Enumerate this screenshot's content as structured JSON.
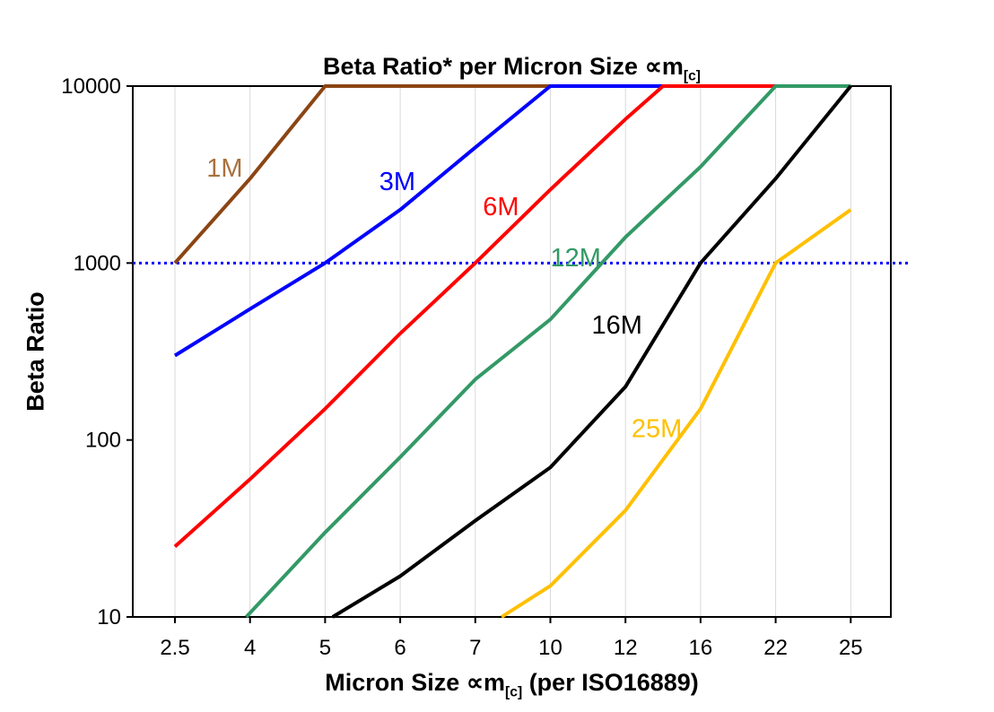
{
  "title": {
    "main": "Beta Ratio* per Micron Size ∝m",
    "sub": "[c]"
  },
  "y_axis_label": "Beta Ratio",
  "x_axis_label": {
    "pre": "Micron Size ∝m",
    "sub": "[c]",
    "post": " (per ISO16889)"
  },
  "chart_data": {
    "type": "line",
    "title": "Beta Ratio* per Micron Size ∝m[c]",
    "xlabel": "Micron Size ∝m[c] (per ISO16889)",
    "ylabel": "Beta Ratio",
    "x_scale": "category",
    "y_scale": "log10",
    "ylim": [
      10,
      10000
    ],
    "y_ticks": [
      "10",
      "100",
      "1000",
      "10000"
    ],
    "categories": [
      "2.5",
      "4",
      "5",
      "6",
      "7",
      "10",
      "12",
      "16",
      "22",
      "25"
    ],
    "grid": {
      "vertical": true,
      "horizontal": false,
      "color": "#d9d9d9"
    },
    "reference_line": {
      "y": 1000,
      "color": "#0000ff",
      "style": "dotted"
    },
    "points_format": "[category_index, beta_ratio]",
    "series": [
      {
        "name": "1M",
        "color": "#8B4513",
        "label_color": "#A9713F",
        "label_at": [
          0.42,
          3080
        ],
        "points": [
          [
            0,
            1000
          ],
          [
            1,
            3000
          ],
          [
            2,
            10000
          ],
          [
            9,
            10000
          ]
        ]
      },
      {
        "name": "3M",
        "color": "#0000FF",
        "label_at": [
          2.72,
          2580
        ],
        "points": [
          [
            0,
            300
          ],
          [
            1,
            550
          ],
          [
            2,
            1000
          ],
          [
            3,
            2000
          ],
          [
            4,
            4500
          ],
          [
            5,
            10000
          ],
          [
            9,
            10000
          ]
        ]
      },
      {
        "name": "6M",
        "color": "#FF0000",
        "label_at": [
          4.1,
          1860
        ],
        "points": [
          [
            0,
            25
          ],
          [
            1,
            60
          ],
          [
            2,
            150
          ],
          [
            3,
            400
          ],
          [
            4,
            1000
          ],
          [
            5,
            2600
          ],
          [
            6,
            6500
          ],
          [
            6.5,
            10000
          ],
          [
            9,
            10000
          ]
        ]
      },
      {
        "name": "12M",
        "color": "#339966",
        "label_at": [
          5.0,
          960
        ],
        "points": [
          [
            0.95,
            10
          ],
          [
            2,
            30
          ],
          [
            3,
            80
          ],
          [
            4,
            220
          ],
          [
            5,
            480
          ],
          [
            6,
            1400
          ],
          [
            7,
            3500
          ],
          [
            8,
            10000
          ],
          [
            9,
            10000
          ]
        ]
      },
      {
        "name": "16M",
        "color": "#000000",
        "label_at": [
          5.55,
          400
        ],
        "points": [
          [
            2.1,
            10
          ],
          [
            3,
            17
          ],
          [
            4,
            35
          ],
          [
            5,
            70
          ],
          [
            6,
            200
          ],
          [
            7,
            1000
          ],
          [
            8,
            3000
          ],
          [
            9,
            10000
          ]
        ]
      },
      {
        "name": "25M",
        "color": "#FFC000",
        "label_at": [
          6.08,
          104
        ],
        "points": [
          [
            4.35,
            10
          ],
          [
            5,
            15
          ],
          [
            6,
            40
          ],
          [
            7,
            150
          ],
          [
            8,
            1000
          ],
          [
            9,
            2000
          ]
        ]
      }
    ]
  }
}
